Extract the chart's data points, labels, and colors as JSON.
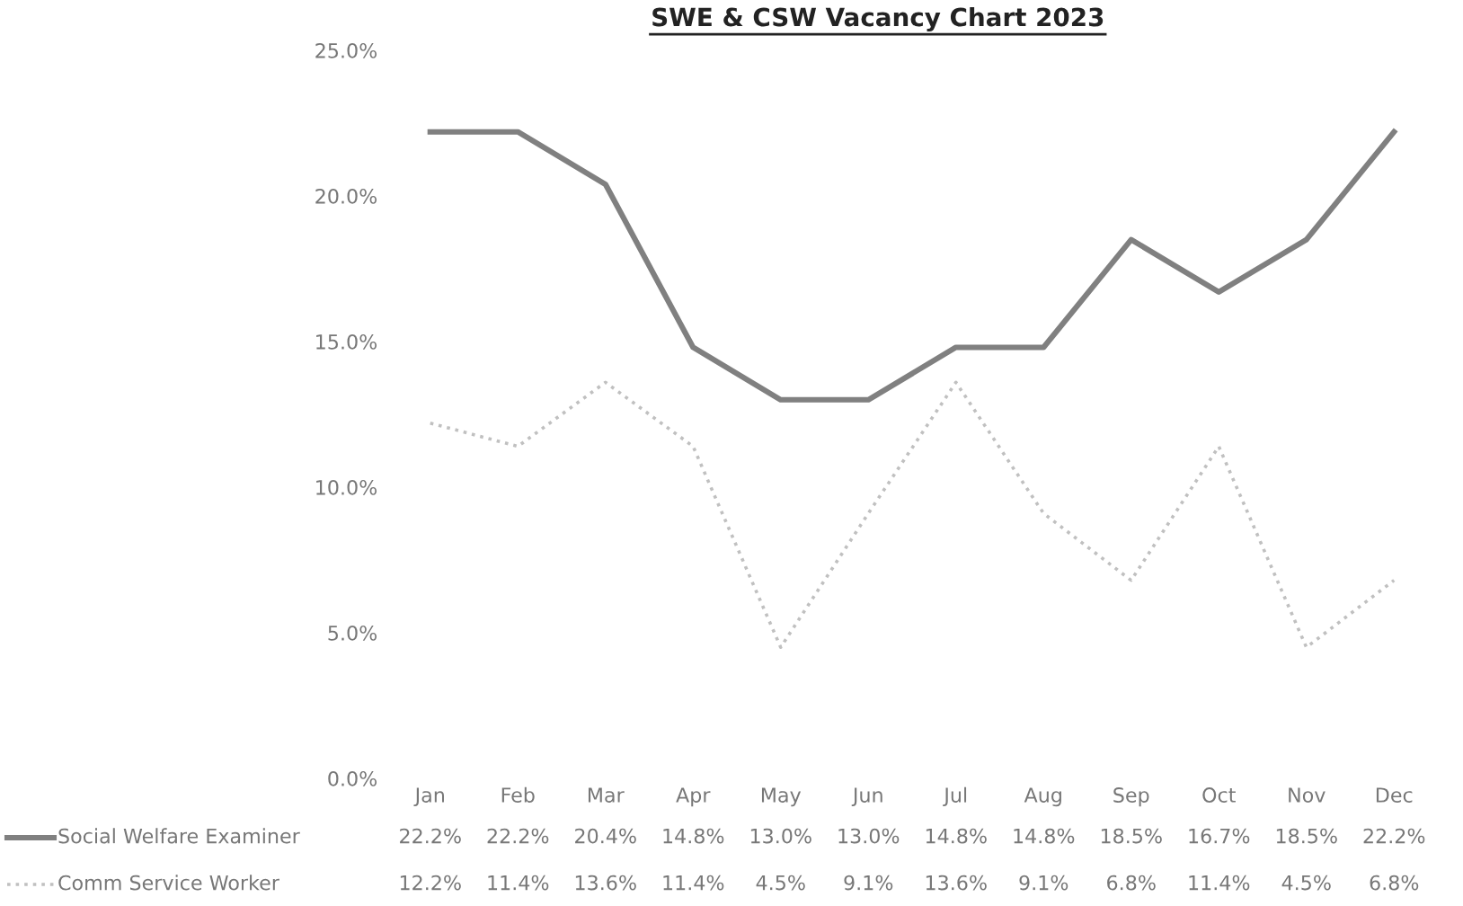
{
  "chart_data": {
    "type": "line",
    "title": "SWE & CSW Vacancy Chart 2023",
    "categories": [
      "Jan",
      "Feb",
      "Mar",
      "Apr",
      "May",
      "Jun",
      "Jul",
      "Aug",
      "Sep",
      "Oct",
      "Nov",
      "Dec"
    ],
    "series": [
      {
        "name": "Social Welfare Examiner",
        "color": "#808080",
        "line_style": "solid",
        "values": [
          22.2,
          22.2,
          20.4,
          14.8,
          13.0,
          13.0,
          14.8,
          14.8,
          18.5,
          16.7,
          18.5,
          22.2
        ],
        "value_labels": [
          "22.2%",
          "22.2%",
          "20.4%",
          "14.8%",
          "13.0%",
          "13.0%",
          "14.8%",
          "14.8%",
          "18.5%",
          "16.7%",
          "18.5%",
          "22.2%"
        ]
      },
      {
        "name": "Comm Service Worker",
        "color": "#c0c0c0",
        "line_style": "dotted",
        "values": [
          12.2,
          11.4,
          13.6,
          11.4,
          4.5,
          9.1,
          13.6,
          9.1,
          6.8,
          11.4,
          4.5,
          6.8
        ],
        "value_labels": [
          "12.2%",
          "11.4%",
          "13.6%",
          "11.4%",
          "4.5%",
          "9.1%",
          "13.6%",
          "9.1%",
          "6.8%",
          "11.4%",
          "4.5%",
          "6.8%"
        ]
      }
    ],
    "ylim": [
      0,
      25
    ],
    "yticks": [
      {
        "value": 0,
        "label": "0.0%"
      },
      {
        "value": 5,
        "label": "5.0%"
      },
      {
        "value": 10,
        "label": "10.0%"
      },
      {
        "value": 15,
        "label": "15.0%"
      },
      {
        "value": 20,
        "label": "20.0%"
      },
      {
        "value": 25,
        "label": "25.0%"
      }
    ],
    "grid": false,
    "marker": "none",
    "legend": "bottom"
  }
}
